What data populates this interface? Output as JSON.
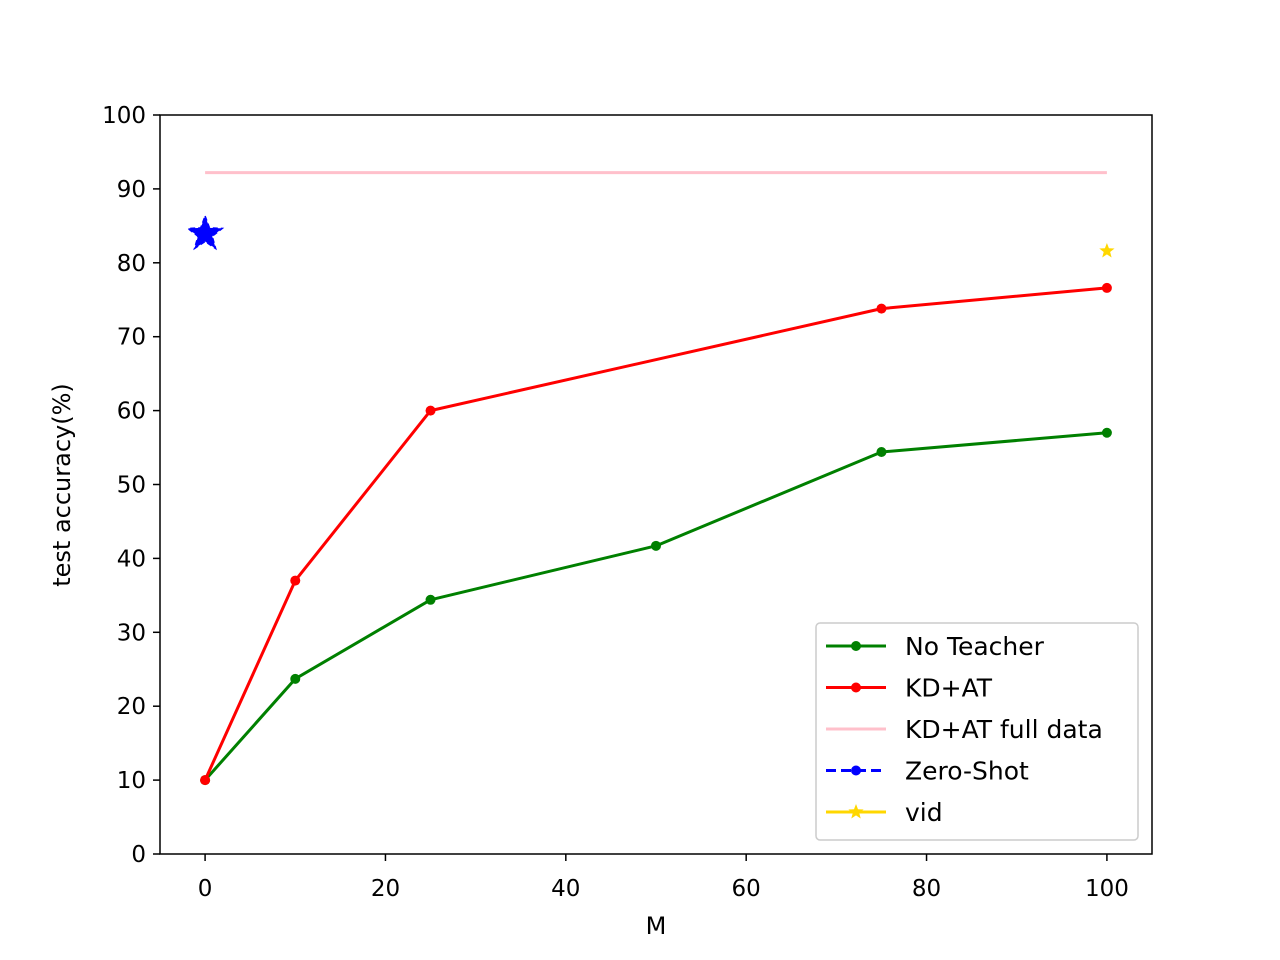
{
  "chart_data": {
    "type": "line",
    "title": "",
    "xlabel": "M",
    "ylabel": "test accuracy(%)",
    "xlim": [
      -5,
      105
    ],
    "ylim": [
      0,
      100
    ],
    "xticks": [
      0,
      20,
      40,
      60,
      80,
      100
    ],
    "yticks": [
      0,
      10,
      20,
      30,
      40,
      50,
      60,
      70,
      80,
      90,
      100
    ],
    "grid": false,
    "legend_position": "bottom-right",
    "series": [
      {
        "name": "No Teacher",
        "color": "#008000",
        "style": "solid",
        "marker": "dot",
        "x": [
          0,
          10,
          25,
          50,
          75,
          100
        ],
        "y": [
          10,
          23.7,
          34.4,
          41.7,
          54.4,
          57.0
        ]
      },
      {
        "name": "KD+AT",
        "color": "#ff0000",
        "style": "solid",
        "marker": "dot",
        "x": [
          0,
          10,
          25,
          75,
          100
        ],
        "y": [
          10,
          37.0,
          60.0,
          73.8,
          76.6
        ]
      },
      {
        "name": "KD+AT full data",
        "color": "#ffc0cb",
        "style": "solid",
        "marker": "none",
        "x": [
          0,
          100
        ],
        "y": [
          92.2,
          92.2
        ]
      },
      {
        "name": "Zero-Shot",
        "color": "#0000ff",
        "style": "dashed",
        "marker": "dot",
        "plot_marker": "star-large",
        "x": [
          0
        ],
        "y": [
          83.9
        ]
      },
      {
        "name": "vid",
        "color": "#ffd700",
        "style": "solid",
        "marker": "star",
        "plot_marker": "star-small",
        "x": [
          100
        ],
        "y": [
          81.6
        ]
      }
    ]
  }
}
